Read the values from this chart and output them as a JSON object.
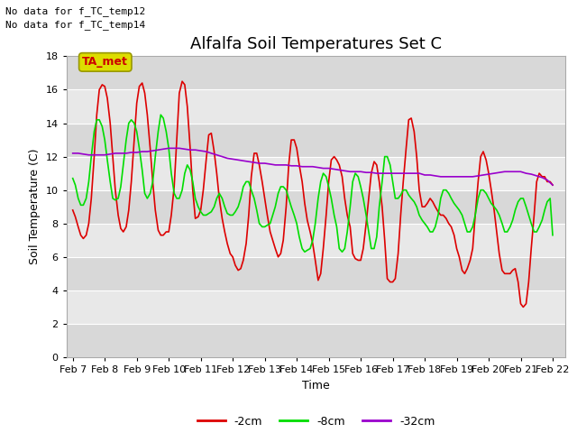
{
  "title": "Alfalfa Soil Temperatures Set C",
  "xlabel": "Time",
  "ylabel": "Soil Temperature (C)",
  "no_data_text": [
    "No data for f_TC_temp12",
    "No data for f_TC_temp14"
  ],
  "ta_met_label": "TA_met",
  "ta_met_bg_color": "#dddd00",
  "ta_met_text_color": "#cc0000",
  "ta_met_edge_color": "#999900",
  "ylim": [
    0,
    18
  ],
  "yticks": [
    0,
    2,
    4,
    6,
    8,
    10,
    12,
    14,
    16,
    18
  ],
  "x_labels": [
    "Feb 7",
    "Feb 8",
    "Feb 9",
    "Feb 10",
    "Feb 11",
    "Feb 12",
    "Feb 13",
    "Feb 14",
    "Feb 15",
    "Feb 16",
    "Feb 17",
    "Feb 18",
    "Feb 19",
    "Feb 20",
    "Feb 21",
    "Feb 22"
  ],
  "x_values": [
    7,
    8,
    9,
    10,
    11,
    12,
    13,
    14,
    15,
    16,
    17,
    18,
    19,
    20,
    21,
    22
  ],
  "xlim": [
    6.8,
    22.4
  ],
  "bg_color": "#ffffff",
  "plot_bg_color_light": "#e8e8e8",
  "plot_bg_color_dark": "#d8d8d8",
  "grid_color": "#ffffff",
  "legend_items": [
    {
      "label": "-2cm",
      "color": "#dd0000"
    },
    {
      "label": "-8cm",
      "color": "#00dd00"
    },
    {
      "label": "-32cm",
      "color": "#9900cc"
    }
  ],
  "title_fontsize": 13,
  "axis_label_fontsize": 9,
  "tick_fontsize": 8,
  "series": {
    "red_2cm": {
      "label": "-2cm",
      "color": "#dd0000",
      "linewidth": 1.2,
      "x": [
        7.0,
        7.08,
        7.17,
        7.25,
        7.33,
        7.42,
        7.5,
        7.58,
        7.67,
        7.75,
        7.83,
        7.92,
        8.0,
        8.08,
        8.17,
        8.25,
        8.33,
        8.42,
        8.5,
        8.58,
        8.67,
        8.75,
        8.83,
        8.92,
        9.0,
        9.08,
        9.17,
        9.25,
        9.33,
        9.42,
        9.5,
        9.58,
        9.67,
        9.75,
        9.83,
        9.92,
        10.0,
        10.08,
        10.17,
        10.25,
        10.33,
        10.42,
        10.5,
        10.58,
        10.67,
        10.75,
        10.83,
        10.92,
        11.0,
        11.08,
        11.17,
        11.25,
        11.33,
        11.42,
        11.5,
        11.58,
        11.67,
        11.75,
        11.83,
        11.92,
        12.0,
        12.08,
        12.17,
        12.25,
        12.33,
        12.42,
        12.5,
        12.58,
        12.67,
        12.75,
        12.83,
        12.92,
        13.0,
        13.08,
        13.17,
        13.25,
        13.33,
        13.42,
        13.5,
        13.58,
        13.67,
        13.75,
        13.83,
        13.92,
        14.0,
        14.08,
        14.17,
        14.25,
        14.33,
        14.42,
        14.5,
        14.58,
        14.67,
        14.75,
        14.83,
        14.92,
        15.0,
        15.08,
        15.17,
        15.25,
        15.33,
        15.42,
        15.5,
        15.58,
        15.67,
        15.75,
        15.83,
        15.92,
        16.0,
        16.08,
        16.17,
        16.25,
        16.33,
        16.42,
        16.5,
        16.58,
        16.67,
        16.75,
        16.83,
        16.92,
        17.0,
        17.08,
        17.17,
        17.25,
        17.33,
        17.42,
        17.5,
        17.58,
        17.67,
        17.75,
        17.83,
        17.92,
        18.0,
        18.08,
        18.17,
        18.25,
        18.33,
        18.42,
        18.5,
        18.58,
        18.67,
        18.75,
        18.83,
        18.92,
        19.0,
        19.08,
        19.17,
        19.25,
        19.33,
        19.42,
        19.5,
        19.58,
        19.67,
        19.75,
        19.83,
        19.92,
        20.0,
        20.08,
        20.17,
        20.25,
        20.33,
        20.42,
        20.5,
        20.58,
        20.67,
        20.75,
        20.83,
        20.92,
        21.0,
        21.08,
        21.17,
        21.25,
        21.33,
        21.42,
        21.5,
        21.58,
        21.67,
        21.75,
        21.83,
        21.92,
        22.0
      ],
      "y": [
        8.8,
        8.4,
        7.8,
        7.3,
        7.1,
        7.3,
        8.0,
        9.5,
        12.0,
        14.5,
        16.0,
        16.3,
        16.2,
        15.5,
        14.0,
        12.0,
        10.0,
        8.5,
        7.7,
        7.5,
        7.8,
        8.8,
        10.5,
        13.0,
        15.2,
        16.2,
        16.4,
        15.8,
        14.5,
        12.5,
        10.5,
        8.8,
        7.6,
        7.3,
        7.3,
        7.5,
        7.5,
        8.5,
        10.2,
        13.0,
        15.8,
        16.5,
        16.3,
        15.0,
        12.5,
        10.0,
        8.3,
        8.4,
        8.8,
        10.0,
        11.8,
        13.3,
        13.4,
        12.3,
        11.0,
        9.5,
        8.3,
        7.5,
        6.8,
        6.2,
        6.0,
        5.5,
        5.2,
        5.3,
        5.8,
        6.8,
        8.5,
        10.8,
        12.2,
        12.2,
        11.5,
        10.5,
        9.5,
        8.5,
        7.5,
        7.0,
        6.5,
        6.0,
        6.2,
        7.0,
        9.0,
        11.5,
        13.0,
        13.0,
        12.5,
        11.5,
        10.5,
        9.2,
        8.2,
        7.5,
        6.8,
        5.8,
        4.6,
        5.0,
        6.5,
        8.5,
        10.5,
        11.8,
        12.0,
        11.8,
        11.5,
        10.8,
        9.5,
        8.5,
        7.8,
        6.2,
        5.9,
        5.8,
        5.8,
        6.5,
        8.0,
        9.5,
        11.0,
        11.7,
        11.5,
        10.5,
        9.0,
        7.0,
        4.7,
        4.5,
        4.5,
        4.7,
        6.2,
        8.5,
        10.5,
        12.5,
        14.2,
        14.3,
        13.5,
        12.0,
        10.0,
        9.0,
        9.0,
        9.2,
        9.5,
        9.3,
        9.0,
        8.7,
        8.5,
        8.5,
        8.3,
        8.0,
        7.8,
        7.3,
        6.5,
        6.0,
        5.2,
        5.0,
        5.3,
        5.8,
        6.5,
        8.5,
        10.5,
        12.0,
        12.3,
        11.8,
        11.0,
        10.0,
        8.8,
        7.5,
        6.2,
        5.2,
        5.0,
        5.0,
        5.0,
        5.2,
        5.3,
        4.5,
        3.2,
        3.0,
        3.2,
        4.5,
        6.5,
        8.5,
        10.5,
        11.0,
        10.8,
        10.8,
        10.5,
        10.5,
        10.3
      ]
    },
    "green_8cm": {
      "label": "-8cm",
      "color": "#00dd00",
      "linewidth": 1.2,
      "x": [
        7.0,
        7.08,
        7.17,
        7.25,
        7.33,
        7.42,
        7.5,
        7.58,
        7.67,
        7.75,
        7.83,
        7.92,
        8.0,
        8.08,
        8.17,
        8.25,
        8.33,
        8.42,
        8.5,
        8.58,
        8.67,
        8.75,
        8.83,
        8.92,
        9.0,
        9.08,
        9.17,
        9.25,
        9.33,
        9.42,
        9.5,
        9.58,
        9.67,
        9.75,
        9.83,
        9.92,
        10.0,
        10.08,
        10.17,
        10.25,
        10.33,
        10.42,
        10.5,
        10.58,
        10.67,
        10.75,
        10.83,
        10.92,
        11.0,
        11.08,
        11.17,
        11.25,
        11.33,
        11.42,
        11.5,
        11.58,
        11.67,
        11.75,
        11.83,
        11.92,
        12.0,
        12.08,
        12.17,
        12.25,
        12.33,
        12.42,
        12.5,
        12.58,
        12.67,
        12.75,
        12.83,
        12.92,
        13.0,
        13.08,
        13.17,
        13.25,
        13.33,
        13.42,
        13.5,
        13.58,
        13.67,
        13.75,
        13.83,
        13.92,
        14.0,
        14.08,
        14.17,
        14.25,
        14.33,
        14.42,
        14.5,
        14.58,
        14.67,
        14.75,
        14.83,
        14.92,
        15.0,
        15.08,
        15.17,
        15.25,
        15.33,
        15.42,
        15.5,
        15.58,
        15.67,
        15.75,
        15.83,
        15.92,
        16.0,
        16.08,
        16.17,
        16.25,
        16.33,
        16.42,
        16.5,
        16.58,
        16.67,
        16.75,
        16.83,
        16.92,
        17.0,
        17.08,
        17.17,
        17.25,
        17.33,
        17.42,
        17.5,
        17.58,
        17.67,
        17.75,
        17.83,
        17.92,
        18.0,
        18.08,
        18.17,
        18.25,
        18.33,
        18.42,
        18.5,
        18.58,
        18.67,
        18.75,
        18.83,
        18.92,
        19.0,
        19.08,
        19.17,
        19.25,
        19.33,
        19.42,
        19.5,
        19.58,
        19.67,
        19.75,
        19.83,
        19.92,
        20.0,
        20.08,
        20.17,
        20.25,
        20.33,
        20.42,
        20.5,
        20.58,
        20.67,
        20.75,
        20.83,
        20.92,
        21.0,
        21.08,
        21.17,
        21.25,
        21.33,
        21.42,
        21.5,
        21.58,
        21.67,
        21.75,
        21.83,
        21.92,
        22.0
      ],
      "y": [
        10.7,
        10.3,
        9.5,
        9.1,
        9.1,
        9.5,
        10.5,
        12.0,
        13.5,
        14.2,
        14.2,
        13.8,
        13.0,
        11.8,
        10.5,
        9.5,
        9.4,
        9.5,
        10.2,
        11.5,
        13.0,
        14.0,
        14.2,
        14.0,
        13.5,
        12.5,
        11.2,
        9.8,
        9.5,
        9.8,
        10.5,
        12.0,
        13.5,
        14.5,
        14.3,
        13.5,
        12.5,
        11.0,
        9.8,
        9.5,
        9.5,
        10.0,
        11.0,
        11.5,
        11.2,
        10.5,
        9.5,
        9.0,
        8.7,
        8.5,
        8.5,
        8.6,
        8.7,
        9.0,
        9.5,
        9.8,
        9.5,
        9.0,
        8.6,
        8.5,
        8.5,
        8.7,
        9.0,
        9.5,
        10.2,
        10.5,
        10.5,
        10.0,
        9.5,
        8.8,
        8.0,
        7.8,
        7.8,
        7.9,
        8.0,
        8.5,
        9.0,
        9.8,
        10.2,
        10.2,
        10.0,
        9.5,
        9.0,
        8.5,
        8.0,
        7.2,
        6.5,
        6.3,
        6.4,
        6.5,
        7.0,
        8.0,
        9.5,
        10.5,
        11.0,
        10.8,
        10.2,
        9.5,
        8.5,
        7.8,
        6.5,
        6.3,
        6.5,
        7.5,
        9.0,
        10.5,
        11.0,
        10.8,
        10.2,
        9.5,
        8.5,
        7.5,
        6.5,
        6.5,
        7.2,
        9.0,
        10.5,
        12.0,
        12.0,
        11.5,
        10.5,
        9.5,
        9.5,
        9.7,
        10.0,
        10.0,
        9.7,
        9.5,
        9.3,
        9.0,
        8.5,
        8.2,
        8.0,
        7.8,
        7.5,
        7.5,
        7.8,
        8.5,
        9.5,
        10.0,
        10.0,
        9.8,
        9.5,
        9.2,
        9.0,
        8.8,
        8.5,
        8.0,
        7.5,
        7.5,
        7.8,
        8.5,
        9.5,
        10.0,
        10.0,
        9.8,
        9.5,
        9.2,
        9.0,
        8.8,
        8.5,
        8.0,
        7.5,
        7.5,
        7.8,
        8.2,
        8.8,
        9.3,
        9.5,
        9.5,
        9.0,
        8.5,
        8.0,
        7.5,
        7.5,
        7.8,
        8.2,
        8.8,
        9.3,
        9.5,
        7.3
      ]
    },
    "purple_32cm": {
      "label": "-32cm",
      "color": "#9900cc",
      "linewidth": 1.2,
      "x": [
        7.0,
        7.17,
        7.33,
        7.5,
        7.67,
        7.83,
        8.0,
        8.17,
        8.33,
        8.5,
        8.67,
        8.83,
        9.0,
        9.17,
        9.33,
        9.5,
        9.67,
        9.83,
        10.0,
        10.17,
        10.33,
        10.5,
        10.67,
        10.83,
        11.0,
        11.17,
        11.33,
        11.5,
        11.67,
        11.83,
        12.0,
        12.17,
        12.33,
        12.5,
        12.67,
        12.83,
        13.0,
        13.17,
        13.33,
        13.5,
        13.67,
        13.83,
        14.0,
        14.17,
        14.33,
        14.5,
        14.67,
        14.83,
        15.0,
        15.17,
        15.33,
        15.5,
        15.67,
        15.83,
        16.0,
        16.17,
        16.33,
        16.5,
        16.67,
        16.83,
        17.0,
        17.17,
        17.33,
        17.5,
        17.67,
        17.83,
        18.0,
        18.17,
        18.33,
        18.5,
        18.67,
        18.83,
        19.0,
        19.17,
        19.33,
        19.5,
        19.67,
        19.83,
        20.0,
        20.17,
        20.33,
        20.5,
        20.67,
        20.83,
        21.0,
        21.17,
        21.33,
        21.5,
        21.67,
        21.83,
        22.0
      ],
      "y": [
        12.2,
        12.2,
        12.15,
        12.1,
        12.1,
        12.1,
        12.1,
        12.15,
        12.2,
        12.2,
        12.2,
        12.25,
        12.25,
        12.3,
        12.3,
        12.35,
        12.4,
        12.45,
        12.5,
        12.5,
        12.5,
        12.45,
        12.4,
        12.4,
        12.35,
        12.3,
        12.2,
        12.1,
        12.0,
        11.9,
        11.85,
        11.8,
        11.75,
        11.7,
        11.65,
        11.6,
        11.6,
        11.55,
        11.5,
        11.5,
        11.5,
        11.45,
        11.45,
        11.4,
        11.4,
        11.4,
        11.35,
        11.3,
        11.3,
        11.25,
        11.2,
        11.15,
        11.1,
        11.1,
        11.1,
        11.05,
        11.05,
        11.0,
        11.0,
        11.0,
        11.0,
        11.0,
        11.0,
        11.0,
        11.0,
        11.0,
        10.9,
        10.9,
        10.85,
        10.8,
        10.8,
        10.8,
        10.8,
        10.8,
        10.8,
        10.8,
        10.85,
        10.9,
        10.95,
        11.0,
        11.05,
        11.1,
        11.1,
        11.1,
        11.1,
        11.0,
        10.95,
        10.85,
        10.75,
        10.6,
        10.3
      ]
    }
  }
}
